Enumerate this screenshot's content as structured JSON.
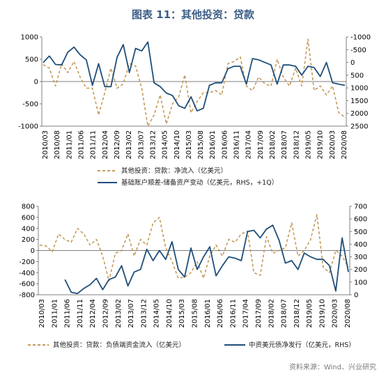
{
  "title": "图表 11：其他投资：贷款",
  "source": "资料来源：Wind、兴业研究",
  "colors": {
    "series1": "#c49a5b",
    "series2": "#1f4e79"
  },
  "chart_data": [
    {
      "type": "line",
      "title": "",
      "x_tick_labels": [
        "2010/03",
        "2010/08",
        "2011/01",
        "2011/06",
        "2011/11",
        "2012/04",
        "2012/09",
        "2013/02",
        "2013/07",
        "2013/12",
        "2014/05",
        "2014/10",
        "2015/03",
        "2015/08",
        "2016/01",
        "2016/06",
        "2016/11",
        "2017/04",
        "2017/09",
        "2018/02",
        "2018/07",
        "2018/12",
        "2019/05",
        "2019/10",
        "2020/03",
        "2020/08"
      ],
      "y_left": {
        "ticks": [
          1000,
          500,
          0,
          -500,
          -1000
        ],
        "range": [
          -1000,
          1000
        ]
      },
      "y_right": {
        "ticks": [
          -1000,
          -500,
          0,
          500,
          1000,
          1500,
          2000,
          2500
        ],
        "range": [
          -1000,
          2500
        ],
        "inverted": true
      },
      "series": [
        {
          "name": "其他投资：贷款：净流入（亿美元）",
          "axis": "left",
          "style": "dashed",
          "values": [
            380,
            300,
            -100,
            400,
            200,
            450,
            100,
            -150,
            -150,
            -750,
            -250,
            300,
            -150,
            -50,
            400,
            350,
            -150,
            -1000,
            -750,
            -300,
            -950,
            -500,
            -350,
            150,
            -700,
            -450,
            -250,
            -250,
            -200,
            -300,
            400,
            450,
            550,
            -100,
            -200,
            100,
            -50,
            -100,
            500,
            100,
            -100,
            300,
            -100,
            950,
            -200,
            -100,
            -300,
            -100,
            -700,
            -800
          ]
        },
        {
          "name": "基础账户顺差-储备资产变动（亿美元，RHS，+1Q）",
          "axis": "right",
          "style": "solid",
          "values": [
            0,
            -250,
            80,
            100,
            -400,
            -600,
            -300,
            -100,
            900,
            50,
            950,
            950,
            -200,
            -700,
            400,
            -550,
            -450,
            -800,
            800,
            950,
            1200,
            1300,
            1700,
            1800,
            1350,
            1900,
            1800,
            900,
            800,
            800,
            250,
            150,
            150,
            850,
            -150,
            -100,
            0,
            100,
            850,
            100,
            100,
            150,
            500,
            150,
            200,
            550,
            0,
            800,
            850,
            900
          ]
        }
      ]
    },
    {
      "type": "line",
      "title": "",
      "x_tick_labels": [
        "2010/03",
        "2011/01",
        "2011/06",
        "2011/11",
        "2012/04",
        "2012/09",
        "2013/02",
        "2013/07",
        "2013/12",
        "2014/05",
        "2014/10",
        "2015/03",
        "2015/08",
        "2016/01",
        "2016/06",
        "2016/11",
        "2017/04",
        "2017/09",
        "2018/02",
        "2018/07",
        "2018/12",
        "2019/05",
        "2019/10",
        "2020/03",
        "2020/08"
      ],
      "y_left": {
        "ticks": [
          800,
          600,
          400,
          200,
          0,
          -200,
          -400,
          -600,
          -800
        ],
        "range": [
          -800,
          800
        ]
      },
      "y_right": {
        "ticks": [
          700,
          600,
          500,
          400,
          300,
          200,
          100,
          0
        ],
        "range": [
          0,
          700
        ]
      },
      "series": [
        {
          "name": "其他投资：贷款：负债端资金流入（亿美元）",
          "axis": "left",
          "style": "dashed",
          "values": [
            100,
            80,
            -20,
            300,
            200,
            150,
            400,
            300,
            100,
            200,
            -100,
            -550,
            -50,
            0,
            300,
            -100,
            200,
            100,
            500,
            600,
            50,
            -200,
            -500,
            -480,
            -400,
            -200,
            -500,
            -100,
            100,
            -100,
            200,
            150,
            300,
            350,
            -400,
            -450,
            250,
            -50,
            0,
            50,
            500,
            -100,
            0,
            200,
            650,
            -300,
            -400,
            0,
            -100,
            -300
          ]
        },
        {
          "name": "中资美元债净发行（亿美元，RHS）",
          "axis": "right",
          "style": "solid",
          "values": [
            null,
            null,
            null,
            null,
            120,
            20,
            10,
            50,
            80,
            130,
            40,
            120,
            140,
            230,
            70,
            180,
            200,
            360,
            270,
            350,
            280,
            420,
            200,
            140,
            370,
            200,
            300,
            380,
            150,
            230,
            300,
            290,
            270,
            500,
            510,
            450,
            520,
            550,
            430,
            250,
            270,
            200,
            330,
            300,
            280,
            280,
            230,
            30,
            450,
            180
          ]
        }
      ]
    }
  ],
  "legend": {
    "top": [
      "其他投资：贷款：净流入（亿美元）",
      "基础账户顺差-储备资产变动（亿美元，RHS，+1Q）"
    ],
    "bottom": [
      "其他投资：贷款：负债端资金流入（亿美元）",
      "中资美元债净发行（亿美元，RHS）"
    ]
  }
}
